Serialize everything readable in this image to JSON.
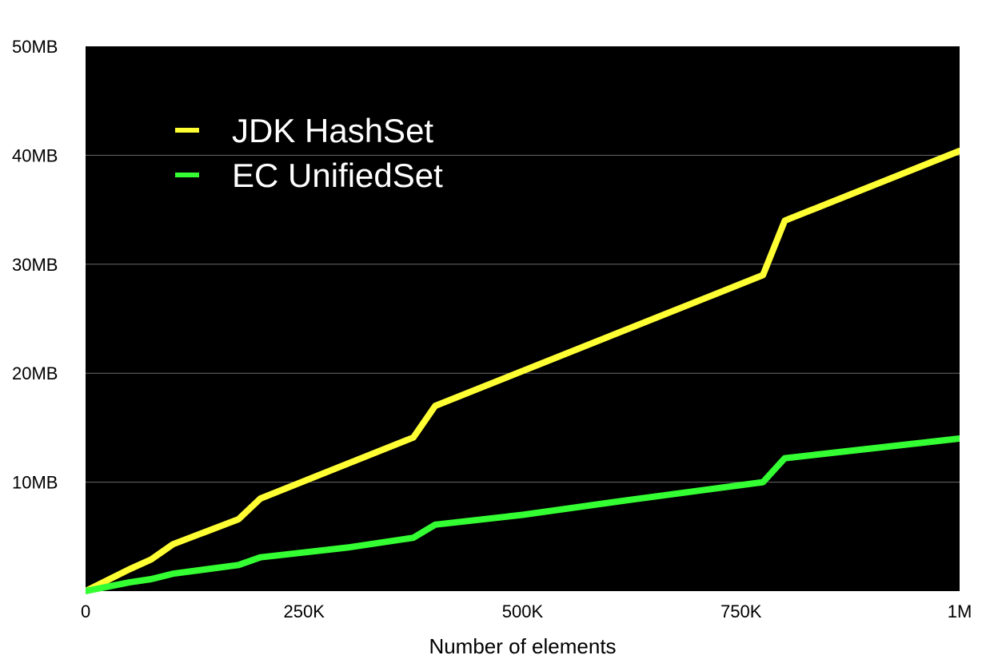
{
  "chart_data": {
    "type": "line",
    "title": "",
    "xlabel": "Number of elements",
    "ylabel": "",
    "xlim": [
      0,
      1000000
    ],
    "ylim": [
      0,
      50
    ],
    "x_ticks": [
      {
        "value": 0,
        "label": "0"
      },
      {
        "value": 250000,
        "label": "250K"
      },
      {
        "value": 500000,
        "label": "500K"
      },
      {
        "value": 750000,
        "label": "750K"
      },
      {
        "value": 1000000,
        "label": "1M"
      }
    ],
    "y_ticks": [
      {
        "value": 10,
        "label": "10MB"
      },
      {
        "value": 20,
        "label": "20MB"
      },
      {
        "value": 30,
        "label": "30MB"
      },
      {
        "value": 40,
        "label": "40MB"
      },
      {
        "value": 50,
        "label": "50MB"
      }
    ],
    "grid": "horizontal",
    "legend_position": "top-left",
    "plot_background": "#000000",
    "series": [
      {
        "name": "JDK HashSet",
        "color": "#ffff33",
        "points": [
          [
            0,
            0
          ],
          [
            50000,
            2
          ],
          [
            75000,
            2.9
          ],
          [
            100000,
            4.3
          ],
          [
            175000,
            6.6
          ],
          [
            200000,
            8.5
          ],
          [
            375000,
            14.1
          ],
          [
            400000,
            17
          ],
          [
            775000,
            29
          ],
          [
            800000,
            34
          ],
          [
            1000000,
            40.4
          ]
        ]
      },
      {
        "name": "EC UnifiedSet",
        "color": "#33ff33",
        "points": [
          [
            0,
            0
          ],
          [
            50000,
            0.8
          ],
          [
            75000,
            1.1
          ],
          [
            100000,
            1.6
          ],
          [
            175000,
            2.4
          ],
          [
            200000,
            3.1
          ],
          [
            300000,
            4
          ],
          [
            375000,
            4.9
          ],
          [
            400000,
            6.1
          ],
          [
            500000,
            7
          ],
          [
            625000,
            8.4
          ],
          [
            775000,
            10
          ],
          [
            800000,
            12.2
          ],
          [
            1000000,
            14
          ]
        ]
      }
    ]
  }
}
